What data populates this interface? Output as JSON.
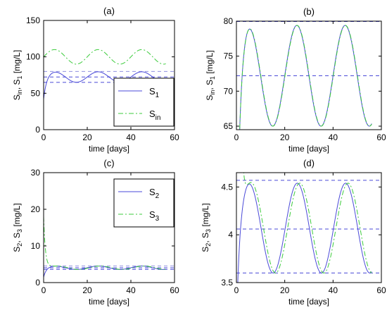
{
  "chart_data": [
    {
      "id": "a",
      "type": "line",
      "title": "(a)",
      "xlabel": "time [days]",
      "ylabel": {
        "base": "S",
        "parts": [
          {
            "t": "S"
          },
          {
            "t": "in",
            "sub": true
          },
          {
            "t": ", S"
          },
          {
            "t": "1",
            "sub": true
          },
          {
            "t": " [mg/L]"
          }
        ]
      },
      "ylabel_text": "S_in, S_1 [mg/L]",
      "xlim": [
        0,
        60
      ],
      "ylim": [
        0,
        150
      ],
      "xticks": [
        0,
        20,
        40,
        60
      ],
      "yticks": [
        0,
        50,
        100,
        150
      ],
      "legend": {
        "placement": "bottom-right",
        "entries": [
          {
            "base": "S",
            "sub": "1"
          },
          {
            "base": "S",
            "sub": "in"
          }
        ]
      },
      "series": [
        {
          "name": "S_1",
          "color": "#4a4ad8",
          "dash": "solid",
          "kind": "sin",
          "mean": 72.3,
          "amp": 7.2,
          "period": 20,
          "phase": 5,
          "start": 42,
          "tau": 1.3
        },
        {
          "name": "S_in",
          "color": "#3ccb3c",
          "dash": "dashdot",
          "kind": "sin",
          "mean": 100,
          "amp": 10,
          "period": 20,
          "phase": 5,
          "start": 100,
          "tau": 0.01
        }
      ],
      "hlines": [
        {
          "y": 65,
          "color": "#4a4ad8"
        },
        {
          "y": 72.3,
          "color": "#4a4ad8"
        },
        {
          "y": 80,
          "color": "#9090e0"
        }
      ]
    },
    {
      "id": "b",
      "type": "line",
      "title": "(b)",
      "xlabel": "time [days]",
      "ylabel": {
        "parts": [
          {
            "t": "S"
          },
          {
            "t": "in",
            "sub": true
          },
          {
            "t": ", S"
          },
          {
            "t": "1",
            "sub": true
          },
          {
            "t": " [mg/L]"
          }
        ]
      },
      "ylabel_text": "S_in, S_1 [mg/L]",
      "xlim": [
        0,
        60
      ],
      "ylim": [
        64.5,
        80
      ],
      "xticks": [
        0,
        20,
        40,
        60
      ],
      "yticks": [
        65,
        70,
        75,
        80
      ],
      "series": [
        {
          "name": "S_1",
          "color": "#4a4ad8",
          "dash": "solid",
          "kind": "sin",
          "mean": 72.2,
          "amp": 7.2,
          "period": 20,
          "phase": 5,
          "start": 42,
          "tau": 1.3
        },
        {
          "name": "S_in",
          "color": "#3ccb3c",
          "dash": "dashdot",
          "kind": "sin",
          "mean": 72.2,
          "amp": 7.2,
          "period": 20,
          "phase": 5.1,
          "start": 42,
          "tau": 1.3
        }
      ],
      "hlines": [
        {
          "y": 79.95,
          "color": "#4a4ad8"
        },
        {
          "y": 72.2,
          "color": "#4a4ad8"
        }
      ]
    },
    {
      "id": "c",
      "type": "line",
      "title": "(c)",
      "xlabel": "time [days]",
      "ylabel": {
        "parts": [
          {
            "t": "S"
          },
          {
            "t": "2",
            "sub": true
          },
          {
            "t": ", S"
          },
          {
            "t": "3",
            "sub": true
          },
          {
            "t": " [mg/L]"
          }
        ]
      },
      "ylabel_text": "S_2, S_3 [mg/L]",
      "xlim": [
        0,
        60
      ],
      "ylim": [
        0,
        30
      ],
      "xticks": [
        0,
        20,
        40,
        60
      ],
      "yticks": [
        0,
        10,
        20,
        30
      ],
      "legend": {
        "placement": "top-right",
        "entries": [
          {
            "base": "S",
            "sub": "2"
          },
          {
            "base": "S",
            "sub": "3"
          }
        ]
      },
      "series": [
        {
          "name": "S_2",
          "color": "#4a4ad8",
          "dash": "solid",
          "kind": "sin",
          "mean": 4.05,
          "amp": 0.47,
          "period": 20,
          "phase": 5,
          "start": 1.5,
          "tau": 1.2
        },
        {
          "name": "S_3",
          "color": "#3ccb3c",
          "dash": "dashdot",
          "kind": "sin",
          "mean": 4.05,
          "amp": 0.47,
          "period": 20,
          "phase": 6,
          "start": 18,
          "tau": 0.8
        }
      ],
      "hlines": [
        {
          "y": 3.6,
          "color": "#4a4ad8"
        },
        {
          "y": 4.05,
          "color": "#4a4ad8"
        },
        {
          "y": 4.55,
          "color": "#9090e0"
        }
      ]
    },
    {
      "id": "d",
      "type": "line",
      "title": "(d)",
      "xlabel": "time [days]",
      "ylabel": {
        "parts": [
          {
            "t": "S"
          },
          {
            "t": "2",
            "sub": true
          },
          {
            "t": ", S"
          },
          {
            "t": "3",
            "sub": true
          },
          {
            "t": " [mg/L]"
          }
        ]
      },
      "ylabel_text": "S_2, S_3 [mg/L]",
      "xlim": [
        0,
        60
      ],
      "ylim": [
        3.5,
        4.65
      ],
      "xticks": [
        0,
        20,
        40,
        60
      ],
      "yticks": [
        3.5,
        4,
        4.5
      ],
      "series": [
        {
          "name": "S_2",
          "color": "#4a4ad8",
          "dash": "solid",
          "kind": "sin",
          "mean": 4.07,
          "amp": 0.47,
          "period": 20,
          "phase": 5.2,
          "start": 3.0,
          "tau": 1.1
        },
        {
          "name": "S_3",
          "color": "#3ccb3c",
          "dash": "dashdot",
          "kind": "sin",
          "mean": 4.07,
          "amp": 0.47,
          "period": 20,
          "phase": 6.2,
          "start": 18,
          "tau": 0.8
        }
      ],
      "hlines": [
        {
          "y": 4.57,
          "color": "#4a4ad8"
        },
        {
          "y": 4.06,
          "color": "#4a4ad8"
        },
        {
          "y": 3.6,
          "color": "#4a4ad8"
        }
      ]
    }
  ]
}
